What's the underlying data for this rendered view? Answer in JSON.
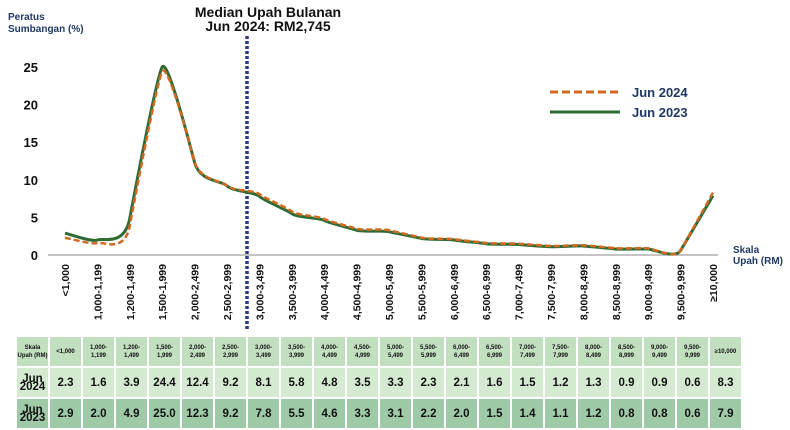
{
  "chart_data": {
    "type": "line",
    "title": "Median Upah Bulanan",
    "subtitle": "Jun 2024: RM2,745",
    "ylabel": "Peratus Sumbangan (%)",
    "xlabel": "Skala Upah (RM)",
    "ylim": [
      0,
      25
    ],
    "yticks": [
      "0",
      "5",
      "10",
      "15",
      "20",
      "25"
    ],
    "categories": [
      "<1,000",
      "1,000-1,199",
      "1,200-1,499",
      "1,500-1,999",
      "2,000-2,499",
      "2,500-2,999",
      "3,000-3,499",
      "3,500-3,999",
      "4,000-4,499",
      "4,500-4,999",
      "5,000-5,499",
      "5,500-5,999",
      "6,000-6,499",
      "6,500-6,999",
      "7,000-7,499",
      "7,500-7,999",
      "8,000-8,499",
      "8,500-8,999",
      "9,000-9,499",
      "9,500-9,999",
      "≥10,000"
    ],
    "series": [
      {
        "name": "Jun 2024",
        "color": "#d2691e",
        "style": "dashed",
        "values": [
          2.3,
          1.6,
          3.9,
          24.4,
          12.4,
          9.2,
          8.1,
          5.8,
          4.8,
          3.5,
          3.3,
          2.3,
          2.1,
          1.6,
          1.5,
          1.2,
          1.3,
          0.9,
          0.9,
          0.6,
          8.3
        ]
      },
      {
        "name": "Jun 2023",
        "color": "#2e6b35",
        "style": "solid",
        "values": [
          2.9,
          2.0,
          4.9,
          25.0,
          12.3,
          9.2,
          7.8,
          5.5,
          4.6,
          3.3,
          3.1,
          2.2,
          2.0,
          1.5,
          1.4,
          1.1,
          1.2,
          0.8,
          0.8,
          0.6,
          7.9
        ]
      }
    ],
    "median_marker": "between 2,500-2,999 and 3,000-3,499",
    "legend": "top-right"
  },
  "table": {
    "header_label": "Skala Upah (RM)",
    "row_labels": [
      "Jun 2024",
      "Jun 2023"
    ]
  }
}
